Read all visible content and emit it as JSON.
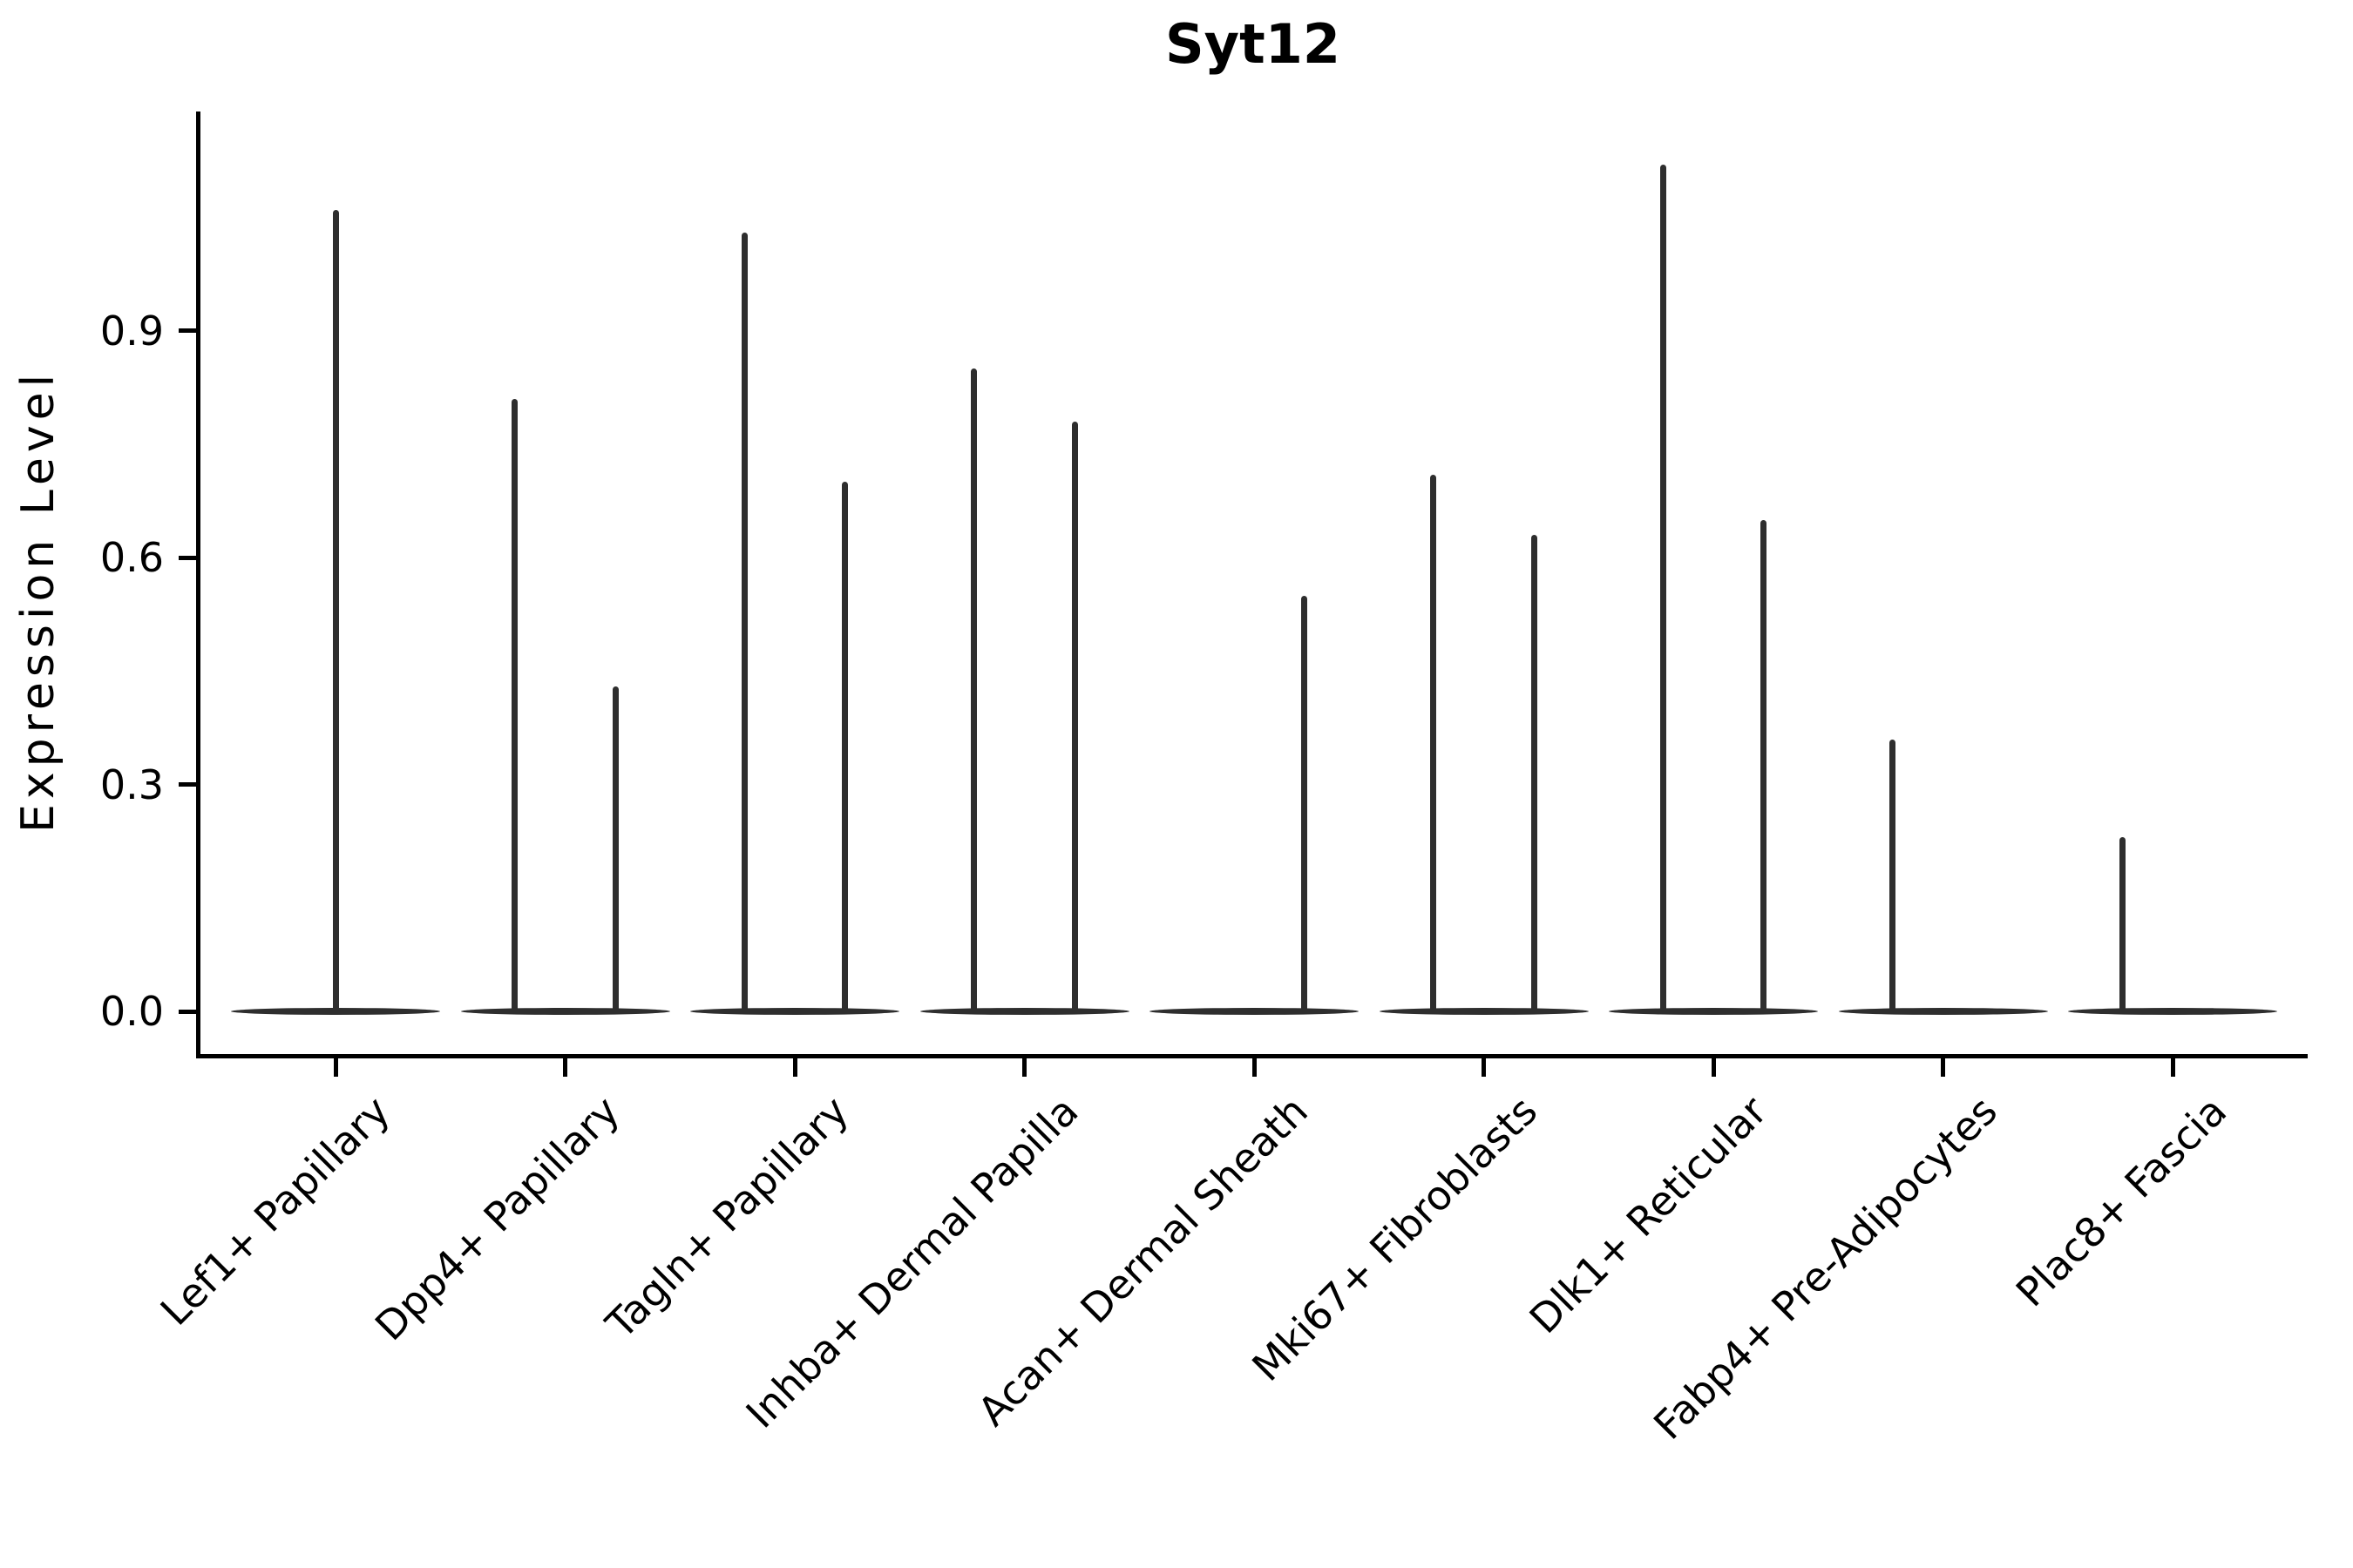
{
  "chart_data": {
    "type": "violin",
    "title": "Syt12",
    "xlabel": "",
    "ylabel": "Expression Level",
    "ytick_labels": [
      "0.0",
      "0.3",
      "0.6",
      "0.9"
    ],
    "ytick_values": [
      0.0,
      0.3,
      0.6,
      0.9
    ],
    "ylim": [
      -0.06,
      1.19
    ],
    "grid": false,
    "legend": "none",
    "categories": [
      "Lef1+ Papillary",
      "Dpp4+ Papillary",
      "Tagln+ Papillary",
      "Inhba+ Dermal Papilla",
      "Acan+ Dermal Sheath",
      "Mki67+ Fibroblasts",
      "Dlk1+ Reticular",
      "Fabp4+ Pre-Adipocytes",
      "Plac8+ Fascia"
    ],
    "description": "Very sparse expression: each category shows a flat violin body at 0.0 with one or two thin density spikes reaching the maximum expression value.",
    "violins": [
      {
        "category": "Lef1+ Papillary",
        "spikes": [
          {
            "pos": "center",
            "offset": 0.0,
            "max": 1.06
          }
        ]
      },
      {
        "category": "Dpp4+ Papillary",
        "spikes": [
          {
            "pos": "left",
            "offset": -0.22,
            "max": 0.81
          },
          {
            "pos": "right",
            "offset": 0.22,
            "max": 0.43
          }
        ]
      },
      {
        "category": "Tagln+ Papillary",
        "spikes": [
          {
            "pos": "left",
            "offset": -0.22,
            "max": 1.03
          },
          {
            "pos": "right",
            "offset": 0.22,
            "max": 0.7
          }
        ]
      },
      {
        "category": "Inhba+ Dermal Papilla",
        "spikes": [
          {
            "pos": "left",
            "offset": -0.22,
            "max": 0.85
          },
          {
            "pos": "right",
            "offset": 0.22,
            "max": 0.78
          }
        ]
      },
      {
        "category": "Acan+ Dermal Sheath",
        "spikes": [
          {
            "pos": "right",
            "offset": 0.22,
            "max": 0.55
          }
        ]
      },
      {
        "category": "Mki67+ Fibroblasts",
        "spikes": [
          {
            "pos": "left",
            "offset": -0.22,
            "max": 0.71
          },
          {
            "pos": "right",
            "offset": 0.22,
            "max": 0.63
          }
        ]
      },
      {
        "category": "Dlk1+ Reticular",
        "spikes": [
          {
            "pos": "left",
            "offset": -0.22,
            "max": 1.12
          },
          {
            "pos": "right",
            "offset": 0.22,
            "max": 0.65
          }
        ]
      },
      {
        "category": "Fabp4+ Pre-Adipocytes",
        "spikes": [
          {
            "pos": "left",
            "offset": -0.22,
            "max": 0.36
          }
        ]
      },
      {
        "category": "Plac8+ Fascia",
        "spikes": [
          {
            "pos": "left",
            "offset": -0.22,
            "max": 0.23
          }
        ]
      }
    ],
    "colors": {
      "violin_line": "#2e2e2e",
      "axis": "#000000",
      "text": "#000000",
      "background": "#ffffff"
    }
  }
}
